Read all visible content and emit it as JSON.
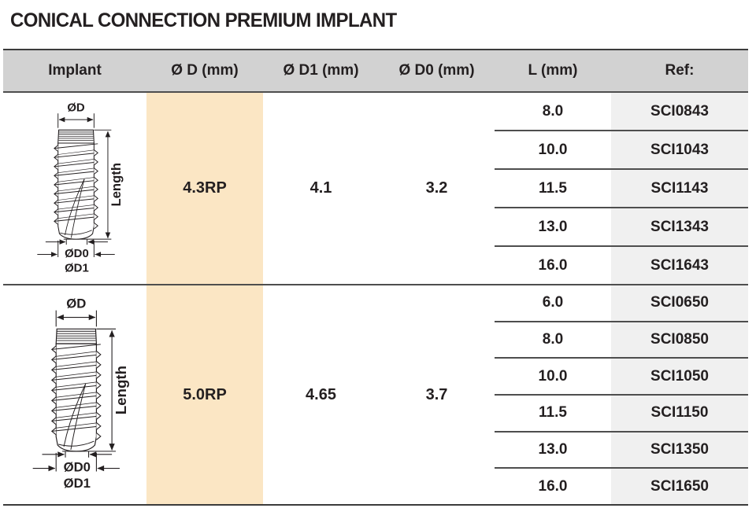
{
  "title": "CONICAL CONNECTION PREMIUM IMPLANT",
  "table": {
    "headers": {
      "implant": "Implant",
      "d": "Ø D (mm)",
      "d1": "Ø D1 (mm)",
      "d0": "Ø D0 (mm)",
      "l": "L (mm)",
      "ref": "Ref:"
    },
    "groups": [
      {
        "d": "4.3RP",
        "d1": "4.1",
        "d0": "3.2",
        "rows": [
          {
            "l": "8.0",
            "ref": "SCI0843"
          },
          {
            "l": "10.0",
            "ref": "SCI1043"
          },
          {
            "l": "11.5",
            "ref": "SCI1143"
          },
          {
            "l": "13.0",
            "ref": "SCI1343"
          },
          {
            "l": "16.0",
            "ref": "SCI1643"
          }
        ]
      },
      {
        "d": "5.0RP",
        "d1": "4.65",
        "d0": "3.7",
        "rows": [
          {
            "l": "6.0",
            "ref": "SCI0650"
          },
          {
            "l": "8.0",
            "ref": "SCI0850"
          },
          {
            "l": "10.0",
            "ref": "SCI1050"
          },
          {
            "l": "11.5",
            "ref": "SCI1150"
          },
          {
            "l": "13.0",
            "ref": "SCI1350"
          },
          {
            "l": "16.0",
            "ref": "SCI1650"
          }
        ]
      }
    ]
  },
  "diagram": {
    "d_label": "ØD",
    "length_label": "Length",
    "d0_label": "ØD0",
    "d1_label": "ØD1"
  },
  "colors": {
    "accent_peach": "#fbe6c4",
    "header_gray": "#d2d2d2",
    "ref_gray": "#f0f0f0",
    "line_dark": "#3b3b3b",
    "line_mid": "#4e4e4e",
    "text_dark": "#231f20"
  }
}
